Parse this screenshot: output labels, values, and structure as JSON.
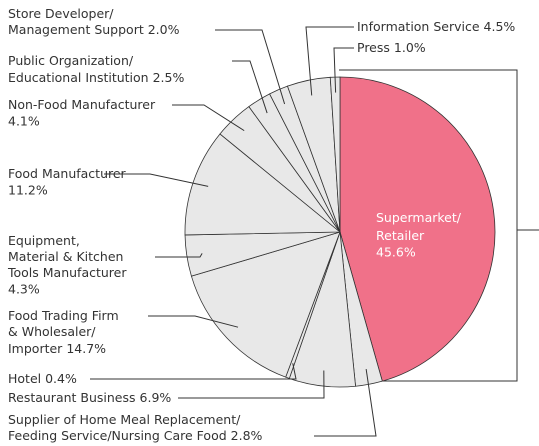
{
  "chart_data": {
    "type": "pie",
    "categories": [
      [
        "Supermarket/",
        "Retailer"
      ],
      [
        "Supplier of Home Meal Replacement/",
        "Feeding Service/Nursing Care Food"
      ],
      [
        "Restaurant Business"
      ],
      [
        "Hotel"
      ],
      [
        "Food Trading Firm",
        "& Wholesaler/",
        "Importer"
      ],
      [
        "Equipment,",
        "Material & Kitchen",
        "Tools Manufacturer"
      ],
      [
        "Food Manufacturer"
      ],
      [
        "Non-Food Manufacturer"
      ],
      [
        "Public Organization/",
        "Educational Institution"
      ],
      [
        "Store Developer/",
        "Management Support"
      ],
      [
        "Information Service"
      ],
      [
        "Press"
      ]
    ],
    "values": [
      45.6,
      2.8,
      6.9,
      0.4,
      14.7,
      4.3,
      11.2,
      4.1,
      2.5,
      2.0,
      4.5,
      1.0
    ],
    "value_labels": [
      "45.6%",
      "2.8%",
      "6.9%",
      "0.4%",
      "14.7%",
      "4.3%",
      "11.2%",
      "4.1%",
      "2.5%",
      "2.0%",
      "4.5%",
      "1.0%"
    ],
    "colors": [
      "#f07189",
      "#e8e8e8",
      "#e8e8e8",
      "#e8e8e8",
      "#e8e8e8",
      "#e8e8e8",
      "#e8e8e8",
      "#e8e8e8",
      "#e8e8e8",
      "#e8e8e8",
      "#e8e8e8",
      "#e8e8e8"
    ]
  }
}
